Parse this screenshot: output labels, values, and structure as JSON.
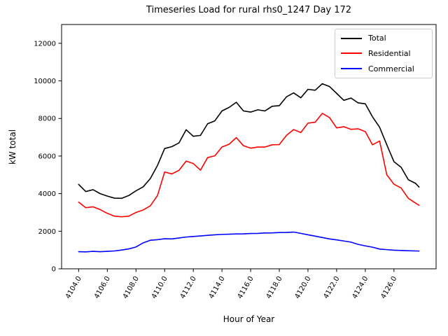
{
  "figure": {
    "title": "Timeseries Load for rural rhs0_1247  Day 172",
    "xlabel": "Hour of Year",
    "ylabel": "kW total"
  },
  "legend": {
    "entries": [
      {
        "label": "Total",
        "color": "#000000"
      },
      {
        "label": "Residential",
        "color": "#ff0000"
      },
      {
        "label": "Commercial",
        "color": "#0000ff"
      }
    ],
    "position": "upper right"
  },
  "chart_data": {
    "type": "line",
    "title": "Timeseries Load for rural rhs0_1247  Day 172",
    "xlabel": "Hour of Year",
    "ylabel": "kW total",
    "grid": false,
    "legend_position": "upper right",
    "xlim": [
      4102.81,
      4128.94
    ],
    "ylim": [
      0,
      13000
    ],
    "xticks": [
      4104,
      4106,
      4108,
      4110,
      4112,
      4114,
      4116,
      4118,
      4120,
      4122,
      4124,
      4126
    ],
    "xtick_labels": [
      "4104.0",
      "4106.0",
      "4108.0",
      "4110.0",
      "4112.0",
      "4114.0",
      "4116.0",
      "4118.0",
      "4120.0",
      "4122.0",
      "4124.0",
      "4126.0"
    ],
    "yticks": [
      0,
      2000,
      4000,
      6000,
      8000,
      10000,
      12000
    ],
    "ytick_labels": [
      "0",
      "2000",
      "4000",
      "6000",
      "8000",
      "10000",
      "12000"
    ],
    "x": [
      4104.0,
      4104.5,
      4105.0,
      4105.5,
      4106.0,
      4106.5,
      4107.0,
      4107.5,
      4108.0,
      4108.5,
      4109.0,
      4109.5,
      4110.0,
      4110.5,
      4111.0,
      4111.5,
      4112.0,
      4112.5,
      4113.0,
      4113.5,
      4114.0,
      4114.5,
      4115.0,
      4115.5,
      4116.0,
      4116.5,
      4117.0,
      4117.5,
      4118.0,
      4118.5,
      4119.0,
      4119.5,
      4120.0,
      4120.5,
      4121.0,
      4121.5,
      4122.0,
      4122.5,
      4123.0,
      4123.5,
      4124.0,
      4124.5,
      4125.0,
      4125.5,
      4126.0,
      4126.5,
      4127.0,
      4127.5,
      4127.75
    ],
    "series": [
      {
        "name": "Total",
        "color": "#000000",
        "values": [
          4490,
          4110,
          4210,
          4000,
          3870,
          3760,
          3750,
          3900,
          4150,
          4360,
          4800,
          5500,
          6400,
          6500,
          6700,
          7400,
          7050,
          7100,
          7720,
          7870,
          8400,
          8590,
          8860,
          8400,
          8340,
          8460,
          8400,
          8650,
          8680,
          9150,
          9360,
          9100,
          9550,
          9500,
          9850,
          9700,
          9335,
          8965,
          9085,
          8830,
          8780,
          8090,
          7530,
          6600,
          5700,
          5400,
          4740,
          4550,
          4350
        ]
      },
      {
        "name": "Residential",
        "color": "#ff0000",
        "values": [
          3550,
          3250,
          3300,
          3150,
          2950,
          2800,
          2770,
          2800,
          3000,
          3130,
          3350,
          3900,
          5150,
          5050,
          5240,
          5730,
          5600,
          5250,
          5920,
          6010,
          6480,
          6630,
          6980,
          6550,
          6420,
          6480,
          6480,
          6600,
          6610,
          7100,
          7410,
          7250,
          7750,
          7800,
          8270,
          8050,
          7500,
          7560,
          7420,
          7450,
          7300,
          6600,
          6800,
          5000,
          4500,
          4300,
          3750,
          3500,
          3380
        ]
      },
      {
        "name": "Commercial",
        "color": "#0000ff",
        "values": [
          910,
          900,
          930,
          910,
          930,
          950,
          1000,
          1060,
          1160,
          1380,
          1520,
          1550,
          1600,
          1590,
          1640,
          1690,
          1720,
          1750,
          1780,
          1810,
          1830,
          1840,
          1855,
          1860,
          1880,
          1885,
          1905,
          1910,
          1930,
          1935,
          1955,
          1885,
          1810,
          1740,
          1665,
          1590,
          1540,
          1480,
          1420,
          1300,
          1220,
          1150,
          1050,
          1020,
          990,
          975,
          960,
          950,
          945
        ]
      }
    ]
  }
}
